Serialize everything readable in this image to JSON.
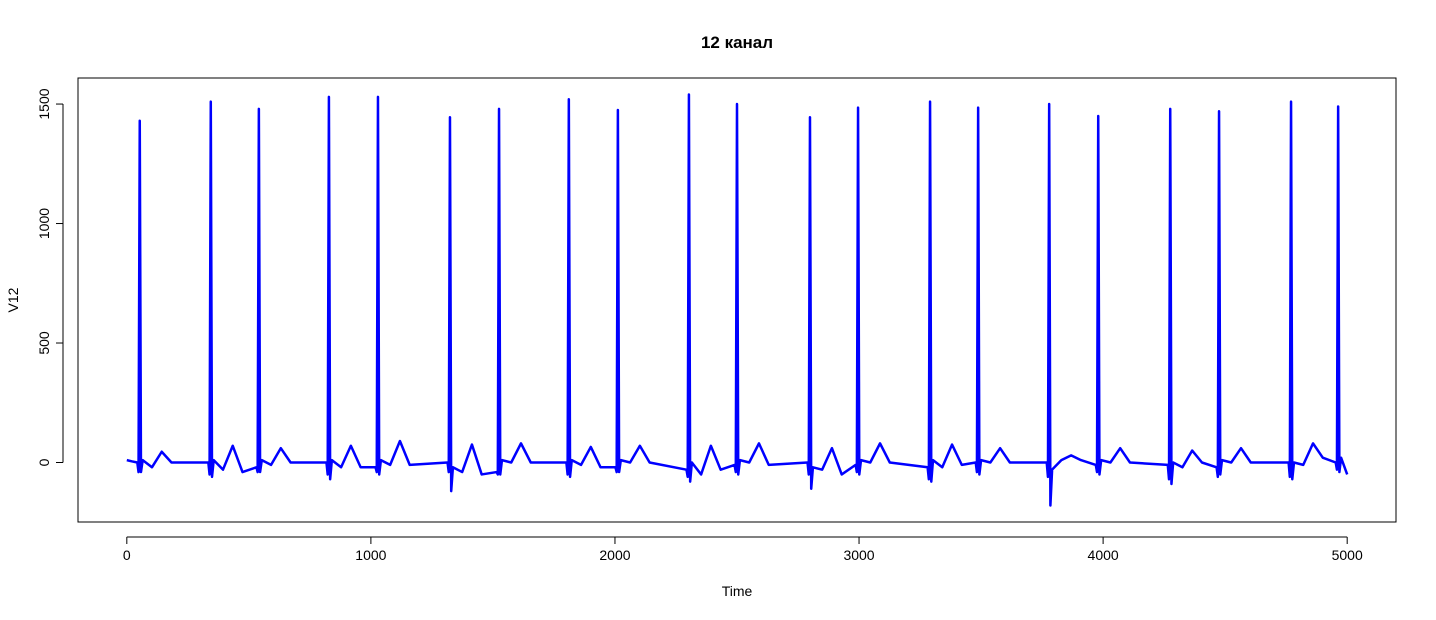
{
  "chart_data": {
    "type": "line",
    "title": "12 канал",
    "x_label": "Time",
    "y_label": "V12",
    "color": "#0000ff",
    "xlim": [
      -200,
      5200
    ],
    "ylim": [
      -249,
      1609
    ],
    "xticks": [
      0,
      1000,
      2000,
      3000,
      4000,
      5000
    ],
    "yticks": [
      0,
      500,
      1000,
      1500
    ],
    "x": [
      0,
      20,
      43,
      48,
      53,
      58,
      65,
      103,
      143,
      183,
      334,
      339,
      344,
      349,
      356,
      394,
      434,
      474,
      531,
      536,
      541,
      546,
      553,
      591,
      631,
      671,
      818,
      823,
      828,
      833,
      840,
      878,
      918,
      958,
      1019,
      1024,
      1029,
      1034,
      1041,
      1079,
      1119,
      1159,
      1314,
      1319,
      1324,
      1329,
      1336,
      1374,
      1414,
      1454,
      1515,
      1520,
      1525,
      1530,
      1537,
      1575,
      1615,
      1655,
      1801,
      1806,
      1811,
      1816,
      1823,
      1861,
      1901,
      1941,
      2002,
      2007,
      2012,
      2017,
      2024,
      2062,
      2102,
      2142,
      2293,
      2298,
      2303,
      2308,
      2315,
      2353,
      2393,
      2433,
      2490,
      2495,
      2500,
      2505,
      2512,
      2550,
      2590,
      2630,
      2789,
      2794,
      2799,
      2804,
      2811,
      2849,
      2889,
      2929,
      2986,
      2991,
      2996,
      3001,
      3008,
      3046,
      3086,
      3126,
      3281,
      3286,
      3291,
      3296,
      3303,
      3341,
      3381,
      3421,
      3478,
      3483,
      3488,
      3493,
      3500,
      3538,
      3578,
      3618,
      3769,
      3774,
      3779,
      3784,
      3791,
      3829,
      3869,
      3909,
      3970,
      3975,
      3980,
      3985,
      3992,
      4030,
      4070,
      4110,
      4265,
      4270,
      4275,
      4280,
      4287,
      4325,
      4365,
      4405,
      4465,
      4470,
      4475,
      4480,
      4487,
      4525,
      4565,
      4605,
      4760,
      4765,
      4770,
      4775,
      4782,
      4820,
      4860,
      4900,
      4953,
      4958,
      4963,
      4968,
      4975,
      5000
    ],
    "values": [
      10,
      5,
      0,
      -40,
      1430,
      -40,
      10,
      -20,
      45,
      0,
      0,
      -50,
      1510,
      -60,
      10,
      -30,
      70,
      -40,
      -20,
      -40,
      1480,
      -40,
      10,
      -10,
      60,
      0,
      0,
      -50,
      1530,
      -70,
      10,
      -20,
      70,
      -20,
      -20,
      -40,
      1530,
      -50,
      10,
      -10,
      90,
      -10,
      0,
      -40,
      1445,
      -120,
      -20,
      -40,
      75,
      -50,
      -40,
      -50,
      1480,
      -50,
      10,
      0,
      80,
      0,
      0,
      -50,
      1520,
      -60,
      10,
      -10,
      65,
      -20,
      -20,
      -40,
      1475,
      -40,
      10,
      0,
      70,
      0,
      -30,
      -60,
      1540,
      -80,
      0,
      -50,
      70,
      -30,
      -10,
      -40,
      1500,
      -50,
      10,
      0,
      80,
      -10,
      0,
      -50,
      1445,
      -110,
      -20,
      -30,
      60,
      -50,
      -10,
      -40,
      1485,
      -50,
      10,
      0,
      80,
      0,
      -20,
      -70,
      1510,
      -80,
      10,
      -20,
      75,
      -10,
      0,
      -40,
      1485,
      -50,
      10,
      0,
      60,
      0,
      0,
      -60,
      1500,
      -180,
      -30,
      10,
      30,
      10,
      -10,
      -40,
      1450,
      -50,
      10,
      0,
      60,
      0,
      -10,
      -70,
      1480,
      -90,
      0,
      -20,
      50,
      0,
      -20,
      -60,
      1470,
      -50,
      10,
      0,
      60,
      0,
      0,
      -60,
      1510,
      -70,
      0,
      -10,
      80,
      20,
      0,
      -30,
      1490,
      -40,
      20,
      -50
    ]
  }
}
